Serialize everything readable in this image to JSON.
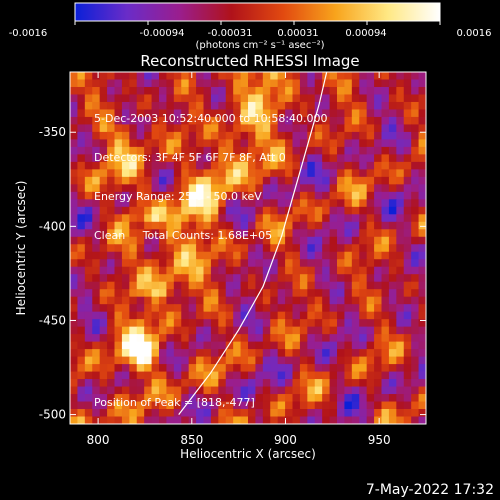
{
  "colorbar": {
    "ticks": [
      "-0.0016",
      "-0.00094",
      "-0.00031",
      "0.00031",
      "0.00094",
      "0.0016"
    ],
    "label": "(photons cm⁻² s⁻¹ asec⁻²)",
    "stops": [
      "#0a20d8",
      "#6a2cc8",
      "#9a1e8e",
      "#b0121a",
      "#e24a10",
      "#f8a41c",
      "#ffe884",
      "#ffffff"
    ]
  },
  "chart_data": {
    "type": "heatmap",
    "title": "Reconstructed RHESSI Image",
    "xlabel": "Heliocentric X (arcsec)",
    "ylabel": "Heliocentric Y (arcsec)",
    "xlim": [
      785,
      975
    ],
    "ylim": [
      -505,
      -318
    ],
    "x_ticks": [
      800,
      850,
      900,
      950
    ],
    "y_ticks": [
      -350,
      -400,
      -450,
      -500
    ],
    "annotations": [
      "5-Dec-2003 10:52:40.000 to 10:58:40.000",
      "Detectors: 3F 4F 5F 6F 7F 8F, Att 0",
      "Energy Range: 25.0 - 50.0 keV",
      "Clean     Total Counts: 1.68E+05"
    ],
    "peak_label": "Position of Peak = [818,-477]",
    "peak": [
      818,
      -477
    ],
    "limb_curve": [
      [
        843,
        -500
      ],
      [
        860,
        -478
      ],
      [
        875,
        -455
      ],
      [
        888,
        -432
      ],
      [
        898,
        -405
      ],
      [
        908,
        -370
      ],
      [
        918,
        -335
      ],
      [
        922,
        -318
      ]
    ],
    "grid": false,
    "legend": "none"
  },
  "timestamp": "7-May-2022 17:32"
}
